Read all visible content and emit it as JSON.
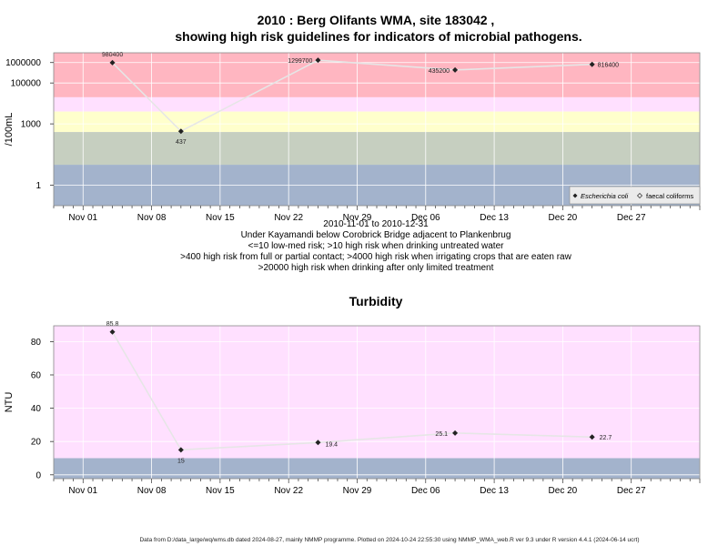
{
  "title_line1": "2010 : Berg Olifants WMA, site 183042 ,",
  "title_line2": "showing high risk guidelines for indicators of microbial pathogens.",
  "x_tick_labels": [
    "Nov 01",
    "Nov 08",
    "Nov 15",
    "Nov 22",
    "Nov 29",
    "Dec 06",
    "Dec 13",
    "Dec 20",
    "Dec 27"
  ],
  "subtitle_lines": [
    "2010-11-01 to 2010-12-31",
    "Under Kayamandi below Corobrick Bridge adjacent to Plankenbrug",
    "<=10 low-med risk; >10 high risk when drinking untreated water",
    ">400 high risk from full or partial contact; >4000 high risk when irrigating crops that are eaten raw",
    ">20000 high risk when drinking after only limited treatment"
  ],
  "footer": "Data from D:/data_large/wq/wms.db dated 2024-08-27, mainly NMMP programme. Plotted on 2024-10-24 22:55:30 using NMMP_WMA_web.R ver 9.3 under R version 4.4.1 (2024-06-14 ucrt)",
  "colors": {
    "band_red": "#ffb6c1",
    "band_pink": "#ffe0ff",
    "band_yellow": "#ffffcc",
    "band_green": "#c6cfc0",
    "band_blue": "#a3b3cc",
    "line": "#e6e6e6",
    "point": "#222222"
  },
  "chart_data": [
    {
      "type": "line",
      "title": "",
      "ylabel": "/100mL",
      "y_scale": "log10",
      "ylim": [
        0.1,
        3000000
      ],
      "xlim": [
        "2010-10-29",
        "2011-01-03"
      ],
      "y_tick_labels": [
        "1000000",
        "100000",
        "1000",
        "1"
      ],
      "y_ticks": [
        1000000,
        100000,
        1000,
        1
      ],
      "bands": [
        {
          "from": 20000,
          "to": 3000000,
          "color": "band_red"
        },
        {
          "from": 4000,
          "to": 20000,
          "color": "band_pink"
        },
        {
          "from": 400,
          "to": 4000,
          "color": "band_yellow"
        },
        {
          "from": 10,
          "to": 400,
          "color": "band_green"
        },
        {
          "from": 0.1,
          "to": 10,
          "color": "band_blue"
        }
      ],
      "series": [
        {
          "name": "Escherichia coli",
          "x": [
            "2010-11-04",
            "2010-11-11",
            "2010-11-25",
            "2010-12-09",
            "2010-12-23"
          ],
          "values": [
            980400,
            437,
            1299700,
            435200,
            816400
          ],
          "labels": [
            "980400",
            "437",
            "1299700",
            "435200",
            "816400"
          ]
        }
      ],
      "legend": {
        "position": "bottom-right",
        "entries": [
          "Escherichia coli",
          "faecal coliforms"
        ]
      }
    },
    {
      "type": "line",
      "title": "Turbidity",
      "ylabel": "NTU",
      "y_scale": "linear",
      "ylim": [
        -2.3,
        89.5
      ],
      "xlim": [
        "2010-10-29",
        "2011-01-03"
      ],
      "y_ticks": [
        0,
        20,
        40,
        60,
        80
      ],
      "y_tick_labels": [
        "0",
        "20",
        "40",
        "60",
        "80"
      ],
      "bands": [
        {
          "from": 10,
          "to": 89.5,
          "color": "band_pink"
        },
        {
          "from": -2.3,
          "to": 10,
          "color": "band_blue"
        }
      ],
      "series": [
        {
          "name": "",
          "x": [
            "2010-11-04",
            "2010-11-11",
            "2010-11-25",
            "2010-12-09",
            "2010-12-23"
          ],
          "values": [
            85.8,
            15,
            19.4,
            25.1,
            22.7
          ],
          "labels": [
            "85.8",
            "15",
            "19.4",
            "25.1",
            "22.7"
          ]
        }
      ]
    }
  ]
}
